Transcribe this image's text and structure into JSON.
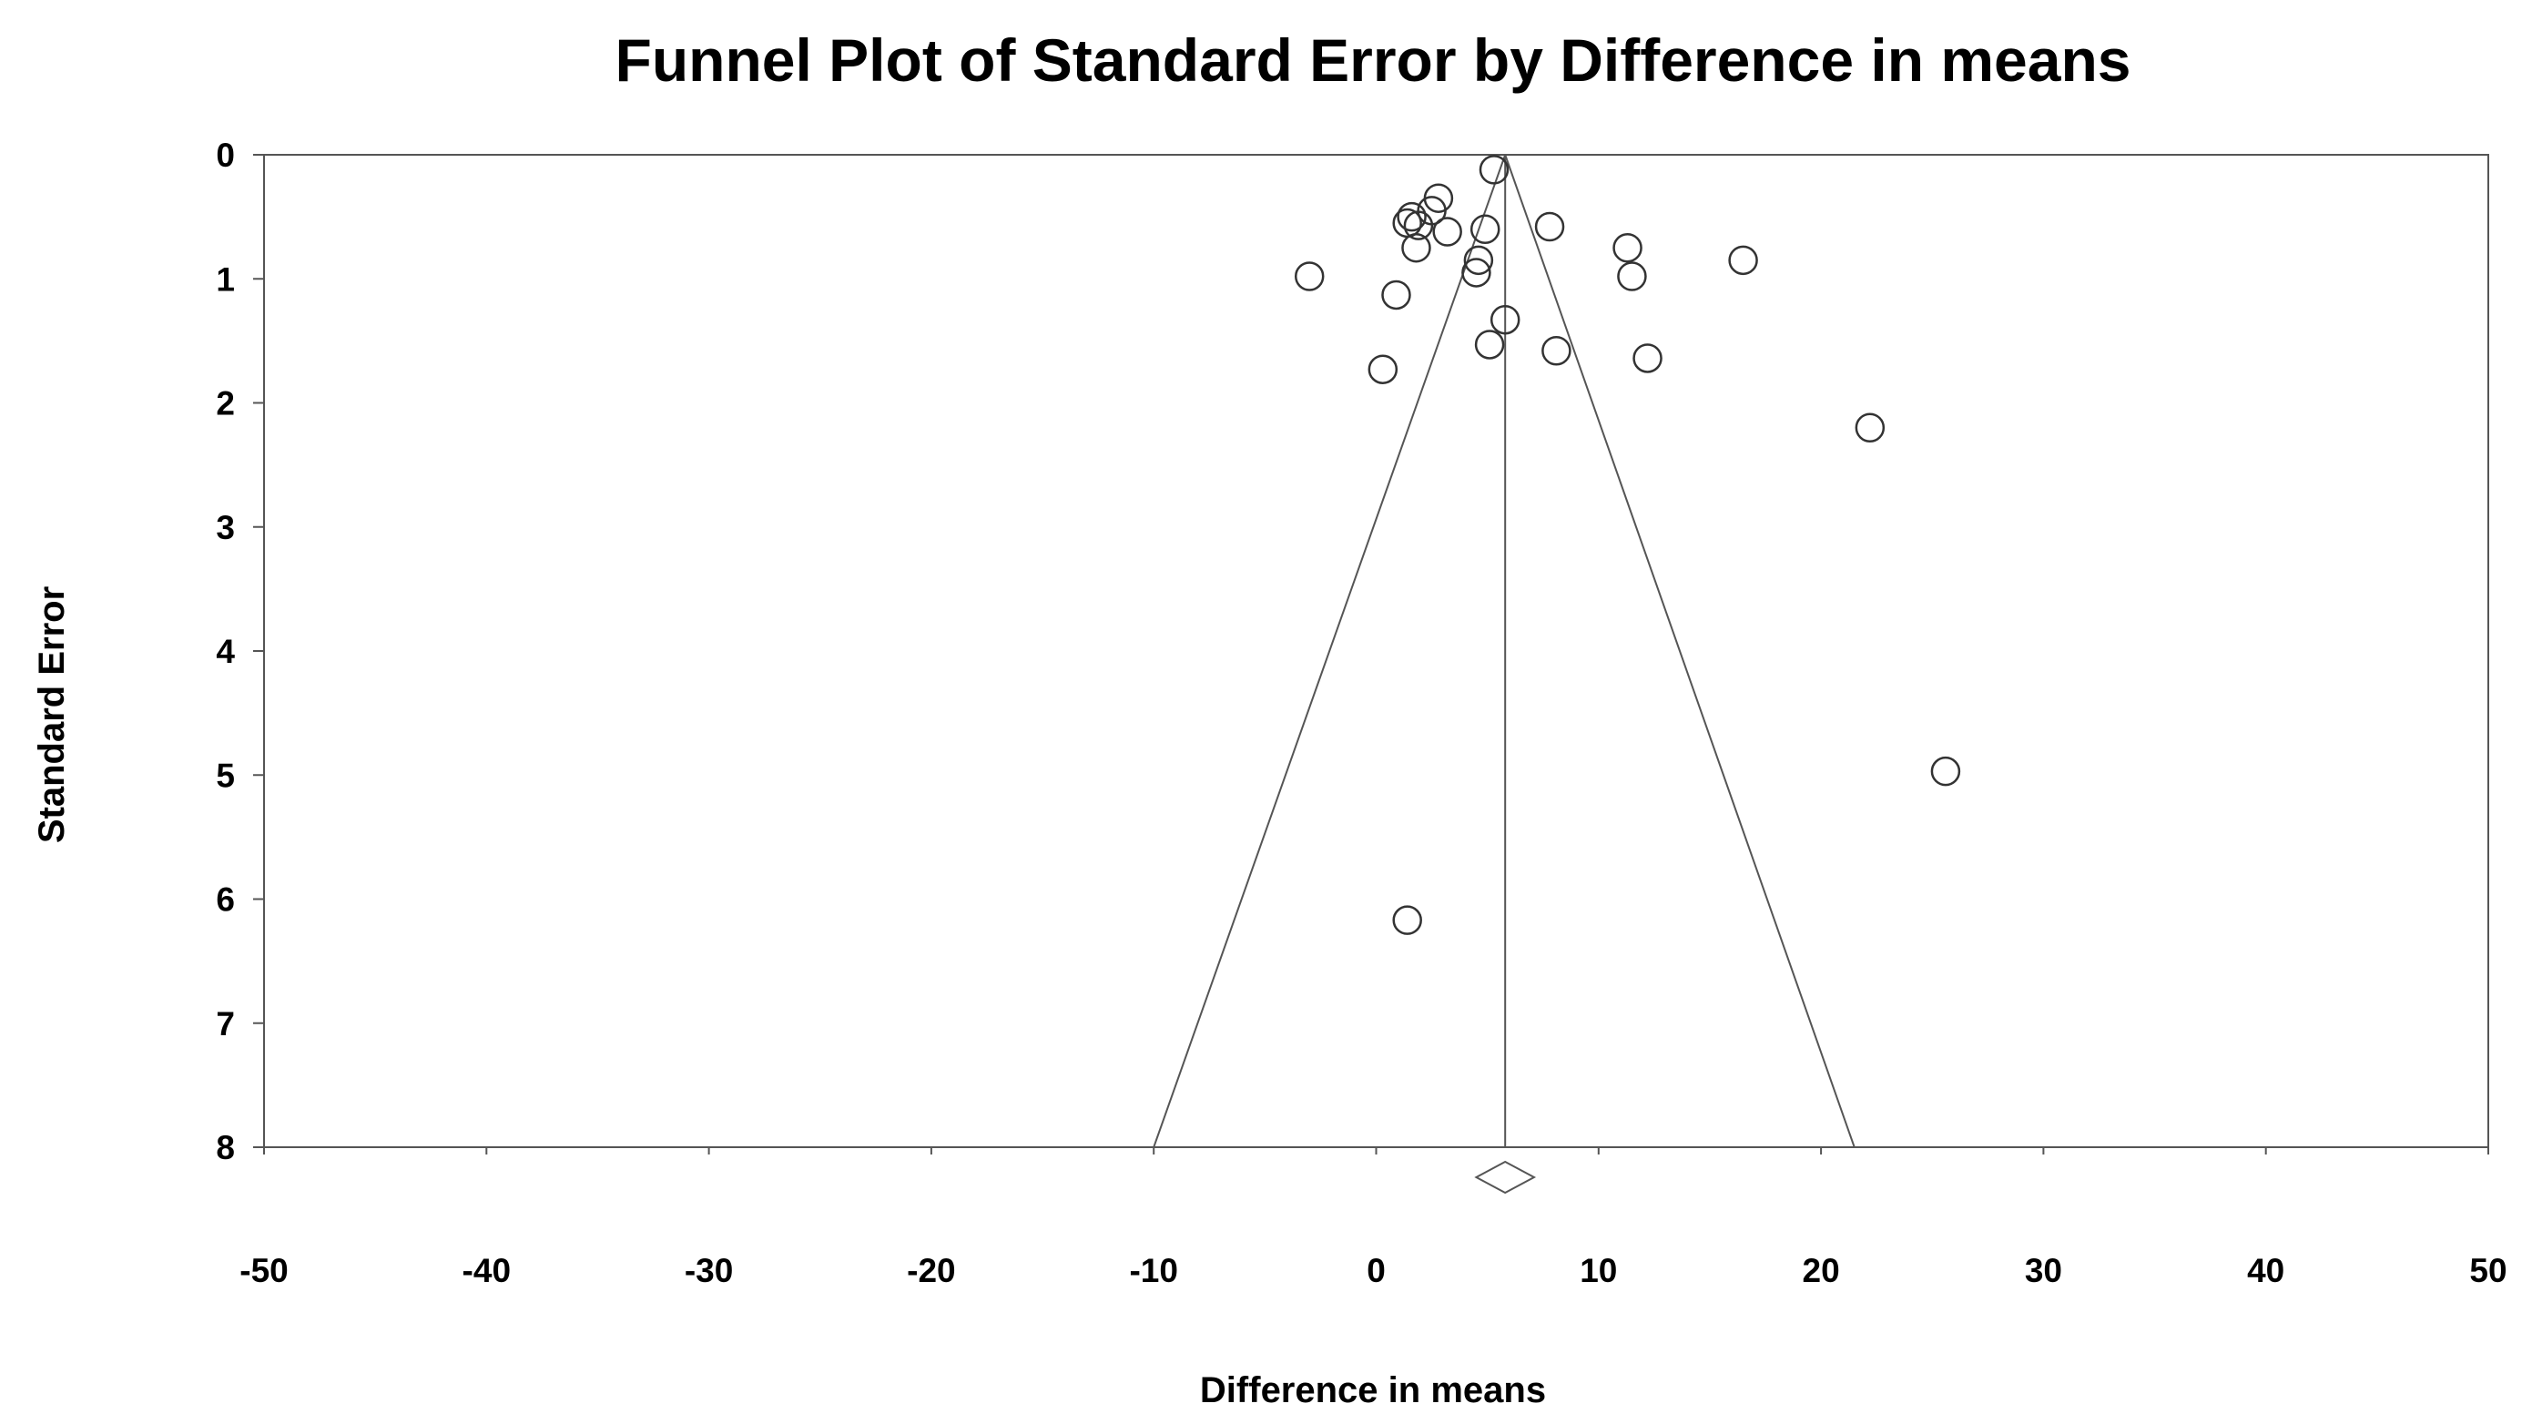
{
  "chart_data": {
    "type": "scatter",
    "title": "Funnel Plot of Standard Error by Difference in means",
    "xlabel": "Difference in means",
    "ylabel": "Standard Error",
    "xlim": [
      -50,
      50
    ],
    "ylim": [
      0,
      8
    ],
    "y_inverted": true,
    "x_ticks": [
      "-50",
      "-40",
      "-30",
      "-20",
      "-10",
      "0",
      "10",
      "20",
      "30",
      "40",
      "50"
    ],
    "y_ticks": [
      "0",
      "1",
      "2",
      "3",
      "4",
      "5",
      "6",
      "7",
      "8"
    ],
    "grid": false,
    "legend": "none",
    "marker": "open-circle",
    "points": [
      {
        "x": 5.3,
        "y": 0.12
      },
      {
        "x": 2.8,
        "y": 0.35
      },
      {
        "x": 2.5,
        "y": 0.45
      },
      {
        "x": 1.6,
        "y": 0.5
      },
      {
        "x": 1.4,
        "y": 0.55
      },
      {
        "x": 1.9,
        "y": 0.57
      },
      {
        "x": 3.2,
        "y": 0.62
      },
      {
        "x": 4.9,
        "y": 0.6
      },
      {
        "x": 7.8,
        "y": 0.58
      },
      {
        "x": 1.8,
        "y": 0.75
      },
      {
        "x": 4.6,
        "y": 0.85
      },
      {
        "x": 4.5,
        "y": 0.95
      },
      {
        "x": 11.3,
        "y": 0.75
      },
      {
        "x": 11.5,
        "y": 0.98
      },
      {
        "x": 16.5,
        "y": 0.85
      },
      {
        "x": -3.0,
        "y": 0.98
      },
      {
        "x": 0.9,
        "y": 1.13
      },
      {
        "x": 5.8,
        "y": 1.33
      },
      {
        "x": 5.1,
        "y": 1.53
      },
      {
        "x": 8.1,
        "y": 1.58
      },
      {
        "x": 12.2,
        "y": 1.64
      },
      {
        "x": 0.3,
        "y": 1.73
      },
      {
        "x": 22.2,
        "y": 2.2
      },
      {
        "x": 25.6,
        "y": 4.97
      },
      {
        "x": 1.4,
        "y": 6.17
      }
    ],
    "summary_effect": 5.8,
    "funnel_limits_at_max_se": [
      -10.0,
      21.5
    ],
    "summary_diamond": {
      "center": 5.8,
      "lower": 4.5,
      "upper": 7.1
    }
  }
}
